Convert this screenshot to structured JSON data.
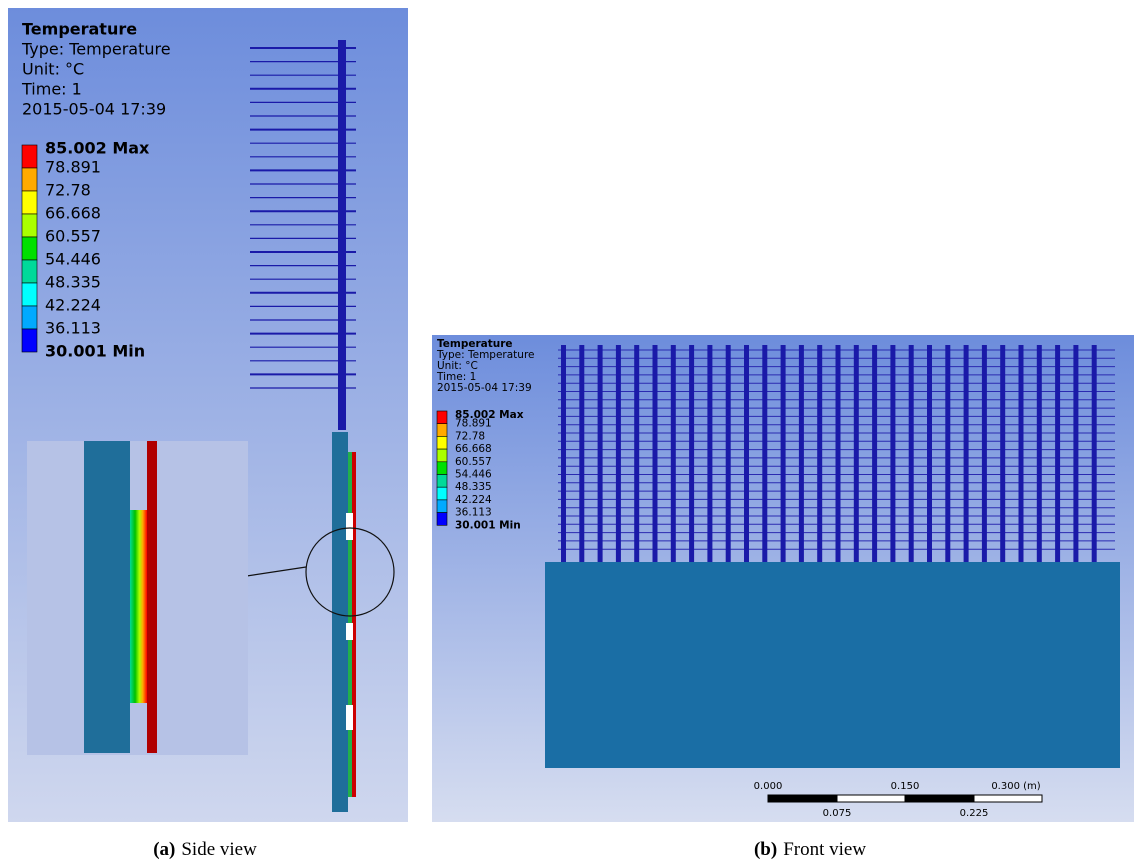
{
  "panels": [
    {
      "header": {
        "title": "Temperature",
        "type": "Type: Temperature",
        "unit": "Unit: °C",
        "time": "Time: 1",
        "date": "2015-05-04 17:39"
      },
      "legend": {
        "labels": [
          "85.002 Max",
          "78.891",
          "72.78",
          "66.668",
          "60.557",
          "54.446",
          "48.335",
          "42.224",
          "36.113",
          "30.001 Min"
        ],
        "colors": [
          "#ff0000",
          "#ffaa00",
          "#ffff00",
          "#aaff00",
          "#00e000",
          "#00d99a",
          "#00ffff",
          "#00aaff",
          "#0000ff"
        ]
      },
      "caption": {
        "label": "(a)",
        "text": "Side view"
      }
    },
    {
      "header": {
        "title": "Temperature",
        "type": "Type: Temperature",
        "unit": "Unit: °C",
        "time": "Time: 1",
        "date": "2015-05-04 17:39"
      },
      "legend": {
        "labels": [
          "85.002 Max",
          "78.891",
          "72.78",
          "66.668",
          "60.557",
          "54.446",
          "48.335",
          "42.224",
          "36.113",
          "30.001 Min"
        ],
        "colors": [
          "#ff0000",
          "#ffaa00",
          "#ffff00",
          "#aaff00",
          "#00e000",
          "#00d99a",
          "#00ffff",
          "#00aaff",
          "#0000ff"
        ]
      },
      "scale_bar": {
        "top": [
          "0.000",
          "0.150",
          "0.300 (m)"
        ],
        "bottom": [
          "0.075",
          "0.225"
        ]
      },
      "caption": {
        "label": "(b)",
        "text": "Front view"
      }
    }
  ]
}
